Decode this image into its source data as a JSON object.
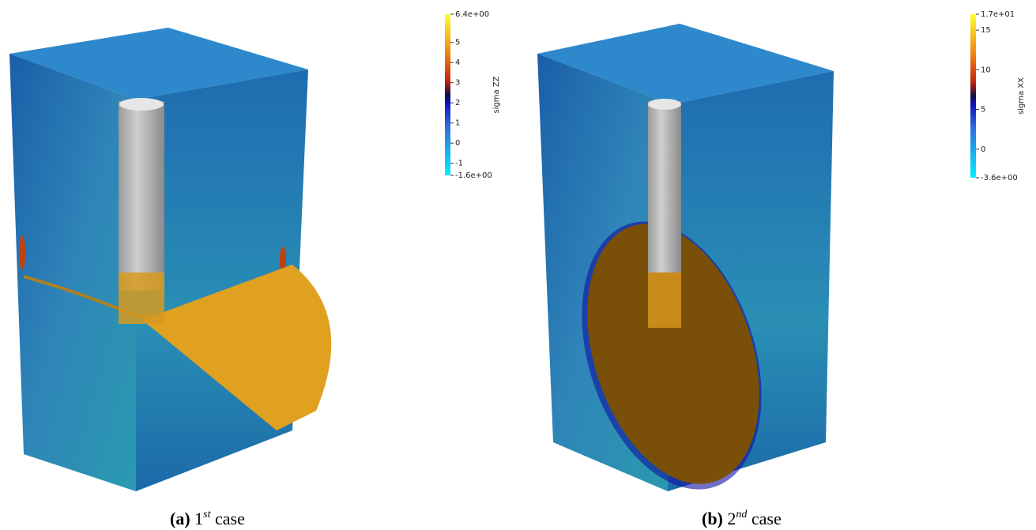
{
  "panels": [
    {
      "colorbar": {
        "title": "sigma ZZ",
        "lim": [
          -1.6,
          6.4
        ],
        "ticks": [
          {
            "value": -1.6,
            "label": "-1.6e+00"
          },
          -1,
          0,
          1,
          2,
          3,
          4,
          5,
          {
            "value": 6.4,
            "label": "6.4e+00"
          }
        ]
      },
      "caption": {
        "letter": "(a)",
        "number": "1",
        "sup": "st",
        "word": "case"
      }
    },
    {
      "colorbar": {
        "title": "sigma XX",
        "lim": [
          -3.6,
          17
        ],
        "ticks": [
          {
            "value": -3.6,
            "label": "-3.6e+00"
          },
          0,
          5,
          10,
          15,
          {
            "value": 17,
            "label": "1.7e+01"
          }
        ]
      },
      "caption": {
        "letter": "(b)",
        "number": "2",
        "sup": "nd",
        "word": "case"
      }
    }
  ]
}
